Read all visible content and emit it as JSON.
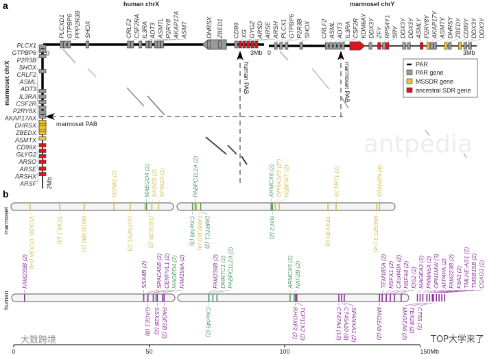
{
  "panel_a": {
    "label": "a",
    "human_title": "human chrX",
    "marmoset_y_title": "marmoset chrY",
    "marmoset_x_title": "marmoset chrX",
    "human_zero": "0",
    "human_end": "3Mb",
    "my_zero": "0",
    "my_end": "3Mb",
    "mx_zero": "0",
    "mx_end": "2Mb",
    "human_pab": "human PAB",
    "marmoset_pab_v": "marmoset PAB",
    "marmoset_pab_h": "marmoset PAB",
    "legend": {
      "par": "PAR",
      "par_gene": "PAR gene",
      "mssdr_gene": "MSSDR gene",
      "sdr_gene": "ancestral SDR gene"
    },
    "colors": {
      "par": "#9a9a9a",
      "mssdr": "#f2c12e",
      "sdr": "#e0141e"
    },
    "human_genes": [
      {
        "name": "PLCXD1",
        "pos": 0.27,
        "t": "par"
      },
      {
        "name": "GTPBP6",
        "pos": 0.32,
        "t": "par"
      },
      {
        "name": "PPP2R3B",
        "pos": 0.38,
        "t": "par"
      },
      {
        "name": "SHOX",
        "pos": 0.65,
        "t": "par"
      },
      {
        "name": "CRLF2",
        "pos": 1.26,
        "t": "par"
      },
      {
        "name": "CSF2RA",
        "pos": 1.31,
        "t": "par"
      },
      {
        "name": "IL3RA",
        "pos": 1.43,
        "t": "par"
      },
      {
        "name": "ADT3",
        "pos": 1.53,
        "t": "par"
      },
      {
        "name": "ASMTL",
        "pos": 1.58,
        "t": "par"
      },
      {
        "name": "P2RY8",
        "pos": 1.66,
        "t": "par"
      },
      {
        "name": "AKAP17A",
        "pos": 1.7,
        "t": "par"
      },
      {
        "name": "ASMT",
        "pos": 1.75,
        "t": "par"
      },
      {
        "name": "DHRSX",
        "pos": 2.44,
        "t": "par"
      },
      {
        "name": "ZBED1",
        "pos": 2.6,
        "t": "par"
      },
      {
        "name": "CD99",
        "pos": 2.84,
        "t": "par"
      },
      {
        "name": "XG",
        "pos": 2.9,
        "t": "sdr"
      },
      {
        "name": "GYG2",
        "pos": 2.96,
        "t": "sdr"
      },
      {
        "name": "ARSD",
        "pos": 3.02,
        "t": "sdr"
      },
      {
        "name": "ARSE",
        "pos": 3.08,
        "t": "sdr"
      },
      {
        "name": "ARSH",
        "pos": 3.14,
        "t": "sdr"
      }
    ],
    "marmoset_y_genes": [
      {
        "name": "PLCX1",
        "pos": 0.02,
        "t": "par"
      },
      {
        "name": "GTPBP6",
        "pos": 0.1,
        "t": "par"
      },
      {
        "name": "P2R3B",
        "pos": 0.18,
        "t": "par"
      },
      {
        "name": "SHOX",
        "pos": 0.4,
        "t": "par"
      },
      {
        "name": "CRLF2",
        "pos": 0.78,
        "t": "par"
      },
      {
        "name": "ASML",
        "pos": 0.84,
        "t": "par"
      },
      {
        "name": "ADT3",
        "pos": 0.9,
        "t": "par"
      },
      {
        "name": "IL3RA",
        "pos": 0.96,
        "t": "par"
      },
      {
        "name": "CSF2R",
        "pos": 1.02,
        "t": "par"
      },
      {
        "name": "KDM6AY",
        "pos": 1.22,
        "t": "sdr"
      },
      {
        "name": "DDX3Y",
        "pos": 1.43,
        "t": "par"
      },
      {
        "name": "ZFY",
        "pos": 1.56,
        "t": "sdr"
      },
      {
        "name": "RPS4Y1",
        "pos": 1.63,
        "t": "par"
      },
      {
        "name": "SRY",
        "pos": 1.68,
        "t": "sdr"
      },
      {
        "name": "DDX3Y",
        "pos": 1.93,
        "t": "par"
      },
      {
        "name": "DDX3Y",
        "pos": 2.0,
        "t": "par"
      },
      {
        "name": "ASMLY",
        "pos": 2.19,
        "t": "sdr"
      },
      {
        "name": "P2RY8Y",
        "pos": 2.29,
        "t": "mssdr"
      },
      {
        "name": "AKAP17Y",
        "pos": 2.34,
        "t": "par"
      },
      {
        "name": "ASMTY",
        "pos": 2.39,
        "t": "par"
      },
      {
        "name": "DHRSY",
        "pos": 2.55,
        "t": "mssdr"
      },
      {
        "name": "ZBEDY",
        "pos": 2.61,
        "t": "par"
      },
      {
        "name": "CD99Y",
        "pos": 2.76,
        "t": "mssdr"
      },
      {
        "name": "DDX3Y",
        "pos": 2.84,
        "t": "par"
      },
      {
        "name": "DDX3Y",
        "pos": 2.91,
        "t": "par"
      }
    ],
    "marmoset_x_genes": [
      {
        "name": "PLCX1",
        "pos": 0.0,
        "t": "par"
      },
      {
        "name": "GTPBP6",
        "pos": 0.06,
        "t": "par"
      },
      {
        "name": "P2R3B",
        "pos": 0.14,
        "t": "par"
      },
      {
        "name": "SHOX",
        "pos": 0.36,
        "t": "par"
      },
      {
        "name": "CRLF2",
        "pos": 0.65,
        "t": "par"
      },
      {
        "name": "ASML",
        "pos": 0.73,
        "t": "par"
      },
      {
        "name": "ADT3",
        "pos": 0.81,
        "t": "par"
      },
      {
        "name": "IL3RA",
        "pos": 0.89,
        "t": "par"
      },
      {
        "name": "CSF2R",
        "pos": 0.96,
        "t": "par"
      },
      {
        "name": "P2RY8X",
        "pos": 1.02,
        "t": "par"
      },
      {
        "name": "AKAP17AX",
        "pos": 1.1,
        "t": "mssdr"
      },
      {
        "name": "DHRSX",
        "pos": 1.18,
        "t": "mssdr"
      },
      {
        "name": "ZBEDX",
        "pos": 1.26,
        "t": "mssdr"
      },
      {
        "name": "ASMTX",
        "pos": 1.34,
        "t": "mssdr"
      },
      {
        "name": "CD99X",
        "pos": 1.44,
        "t": "sdr"
      },
      {
        "name": "GLYG2",
        "pos": 1.52,
        "t": "sdr"
      },
      {
        "name": "ARSO",
        "pos": 1.6,
        "t": "sdr"
      },
      {
        "name": "ARSE",
        "pos": 1.68,
        "t": "sdr"
      },
      {
        "name": "ARSHX",
        "pos": 1.78,
        "t": "sdr"
      },
      {
        "name": "ARSF",
        "pos": 1.86,
        "t": "sdr"
      }
    ]
  },
  "panel_b": {
    "label": "b",
    "marmoset_label": "marmoset",
    "human_label": "human",
    "axis_ticks": [
      "0",
      "50",
      "100",
      "150Mb"
    ],
    "colors": {
      "y": "#cfc055",
      "g": "#4f9a68",
      "p": "#8c2e9c"
    },
    "marmoset_genes": [
      {
        "name": "H2AB1 (2)",
        "pos": 37,
        "c": "y",
        "s": "top"
      },
      {
        "name": "MAEGD4 (2)",
        "pos": 49,
        "c": "g",
        "s": "top"
      },
      {
        "name": "XAGE5 (2)",
        "pos": 51,
        "c": "y",
        "s": "top"
      },
      {
        "name": "SPIN2A (2)",
        "pos": 53.5,
        "c": "y",
        "s": "top"
      },
      {
        "name": "PABPC1L2A (2)",
        "pos": 67,
        "c": "g",
        "s": "top"
      },
      {
        "name": "ARMCX6 (2)",
        "pos": 95,
        "c": "g",
        "s": "top"
      },
      {
        "name": "GPRASP2 (2*)",
        "pos": 96.5,
        "c": "y",
        "s": "top"
      },
      {
        "name": "H2BFWT (2)",
        "pos": 98,
        "c": "y",
        "s": "top"
      },
      {
        "name": "ACTRT1 (2)",
        "pos": 119,
        "c": "y",
        "s": "top"
      },
      {
        "name": "SPANXN (4)",
        "pos": 135,
        "c": "y",
        "s": "top"
      },
      {
        "name": "VCX3B, VCX3A (>4)",
        "pos": 6,
        "c": "y",
        "s": "bot"
      },
      {
        "name": "SCML1 (3)",
        "pos": 17,
        "c": "y",
        "s": "bot"
      },
      {
        "name": "MAGE6B6 (2)",
        "pos": 26,
        "c": "y",
        "s": "bot"
      },
      {
        "name": "DUPSP21 (2)",
        "pos": 43,
        "c": "y",
        "s": "bot"
      },
      {
        "name": "GAGE2B (2)",
        "pos": 48.5,
        "c": "y",
        "s": "bot"
      },
      {
        "name": "CXorf49 (3)",
        "pos": 66,
        "c": "g",
        "s": "bot"
      },
      {
        "name": "FAM236D (4)",
        "pos": 67.5,
        "c": "y",
        "s": "bot"
      },
      {
        "name": "DMRTC1 (2)",
        "pos": 69,
        "c": "g",
        "s": "bot"
      },
      {
        "name": "NXF2 (2)",
        "pos": 95.5,
        "c": "g",
        "s": "bot"
      },
      {
        "name": "TEX13D (2)",
        "pos": 116,
        "c": "y",
        "s": "bot"
      },
      {
        "name": "MAGEC3 (>4)",
        "pos": 134,
        "c": "y",
        "s": "bot"
      }
    ],
    "human_genes": [
      {
        "name": "FAM239B (2)",
        "pos": 4,
        "c": "p",
        "s": "top"
      },
      {
        "name": "SSX4B (2)",
        "pos": 48,
        "c": "p",
        "s": "top"
      },
      {
        "name": "SPACA5B (2)",
        "pos": 49.5,
        "c": "p",
        "s": "top"
      },
      {
        "name": "CENPVL1 (2)",
        "pos": 51.5,
        "c": "p",
        "s": "top"
      },
      {
        "name": "MAGED4 (2)",
        "pos": 52.5,
        "c": "g",
        "s": "top"
      },
      {
        "name": "FAM156A (2)",
        "pos": 55,
        "c": "p",
        "s": "top"
      },
      {
        "name": "FAM236B (2)",
        "pos": 72,
        "c": "p",
        "s": "top"
      },
      {
        "name": "DMRTC1 (2)",
        "pos": 73.5,
        "c": "g",
        "s": "top"
      },
      {
        "name": "PABPC1L2A (2)",
        "pos": 75,
        "c": "g",
        "s": "top"
      },
      {
        "name": "ARMCX6 (2)",
        "pos": 102,
        "c": "g",
        "s": "top"
      },
      {
        "name": "NXF2B (2)",
        "pos": 103.5,
        "c": "g",
        "s": "top"
      },
      {
        "name": "TEM185A (2)",
        "pos": 136,
        "c": "p",
        "s": "top"
      },
      {
        "name": "HSFX1 (2)",
        "pos": 137.5,
        "c": "p",
        "s": "top"
      },
      {
        "name": "CXorf40A (2)",
        "pos": 139,
        "c": "p",
        "s": "top"
      },
      {
        "name": "HSFX4 (2)",
        "pos": 140.5,
        "c": "p",
        "s": "top"
      },
      {
        "name": "IDS2 (2)",
        "pos": 143,
        "c": "p",
        "s": "top"
      },
      {
        "name": "MAGEA2 (2)",
        "pos": 149,
        "c": "p",
        "s": "top"
      },
      {
        "name": "PNMA6A (2)",
        "pos": 151,
        "c": "p",
        "s": "top"
      },
      {
        "name": "OPN1MW (3)",
        "pos": 152.5,
        "c": "p",
        "s": "top"
      },
      {
        "name": "ATP4PA (2)",
        "pos": 153.5,
        "c": "p",
        "s": "top"
      },
      {
        "name": "FAM223B (2)",
        "pos": 155,
        "c": "p",
        "s": "top"
      },
      {
        "name": "F8A3 (2)",
        "pos": 156,
        "c": "p",
        "s": "top"
      },
      {
        "name": "TMLHE-AS1 (2)",
        "pos": 157,
        "c": "p",
        "s": "top"
      },
      {
        "name": "TMSB15B (2)",
        "pos": 158,
        "c": "p",
        "s": "top"
      },
      {
        "name": "CSAG3 (2)",
        "pos": 159,
        "c": "p",
        "s": "top"
      },
      {
        "name": "GAGE1 (8)",
        "pos": 49.5,
        "c": "p",
        "s": "bot"
      },
      {
        "name": "SSX2B (2)",
        "pos": 53,
        "c": "p",
        "s": "bot"
      },
      {
        "name": "PAGE2B (2)",
        "pos": 55.5,
        "c": "p",
        "s": "bot"
      },
      {
        "name": "CXorf49 (2)",
        "pos": 72,
        "c": "g",
        "s": "bot"
      },
      {
        "name": "RHOXF2 (2)",
        "pos": 104,
        "c": "p",
        "s": "bot"
      },
      {
        "name": "TCP11X2 (2)",
        "pos": 104.5,
        "c": "p",
        "s": "bot"
      },
      {
        "name": "CT47A4 (12)",
        "pos": 120,
        "c": "p",
        "s": "bot"
      },
      {
        "name": "CT45A10 (8)",
        "pos": 121,
        "c": "p",
        "s": "bot"
      },
      {
        "name": "SPANXA1 (2)",
        "pos": 122,
        "c": "p",
        "s": "bot"
      },
      {
        "name": "MAGEA9 (2)",
        "pos": 135,
        "c": "p",
        "s": "bot"
      },
      {
        "name": "MAGEA6 (2)",
        "pos": 150,
        "c": "p",
        "s": "bot"
      },
      {
        "name": "TEX28 (2)",
        "pos": 152.5,
        "c": "p",
        "s": "bot"
      },
      {
        "name": "CT55 (2)",
        "pos": 154.5,
        "c": "p",
        "s": "bot"
      }
    ]
  },
  "watermarks": {
    "left": "大数跨境",
    "right": "TOP大学来了",
    "center": "antpedia"
  }
}
